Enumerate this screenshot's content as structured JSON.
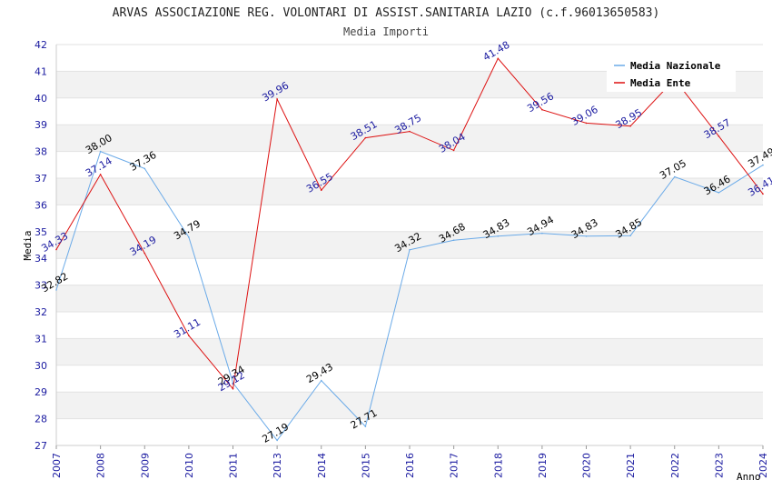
{
  "chart_data": {
    "type": "line",
    "title": "ARVAS ASSOCIAZIONE REG. VOLONTARI DI ASSIST.SANITARIA LAZIO (c.f.96013650583)",
    "subtitle": "Media Importi",
    "xlabel": "Anno",
    "ylabel": "Media",
    "ylim": [
      27,
      42
    ],
    "yticks": [
      "27",
      "28",
      "29",
      "30",
      "31",
      "32",
      "33",
      "34",
      "35",
      "36",
      "37",
      "38",
      "39",
      "40",
      "41",
      "42"
    ],
    "categories": [
      "2007",
      "2008",
      "2009",
      "2010",
      "2011",
      "2013",
      "2014",
      "2015",
      "2016",
      "2017",
      "2018",
      "2019",
      "2020",
      "2021",
      "2022",
      "2023",
      "2024"
    ],
    "grid": "horizontal-bands",
    "legend_position": "top-right",
    "series": [
      {
        "name": "Media Nazionale",
        "color": "#6aaae8",
        "label_color": "#000000",
        "values": [
          32.82,
          38.0,
          37.36,
          34.79,
          29.34,
          27.19,
          29.43,
          27.71,
          34.32,
          34.68,
          34.83,
          34.94,
          34.83,
          34.85,
          37.05,
          36.46,
          37.49
        ],
        "labels": [
          "32.82",
          "38.00",
          "37.36",
          "34.79",
          "29.34",
          "27.19",
          "29.43",
          "27.71",
          "34.32",
          "34.68",
          "34.83",
          "34.94",
          "34.83",
          "34.85",
          "37.05",
          "36.46",
          "37.49"
        ]
      },
      {
        "name": "Media Ente",
        "color": "#dd1111",
        "label_color": "#1a1aa0",
        "values": [
          34.33,
          37.14,
          34.19,
          31.11,
          29.12,
          39.96,
          36.55,
          38.51,
          38.75,
          38.04,
          41.48,
          39.56,
          39.06,
          38.95,
          40.7,
          38.57,
          36.41
        ],
        "labels": [
          "34.33",
          "37.14",
          "34.19",
          "31.11",
          "29.12",
          "39.96",
          "36.55",
          "38.51",
          "38.75",
          "38.04",
          "41.48",
          "39.56",
          "39.06",
          "38.95",
          "",
          "38.57",
          "36.41"
        ]
      }
    ]
  }
}
